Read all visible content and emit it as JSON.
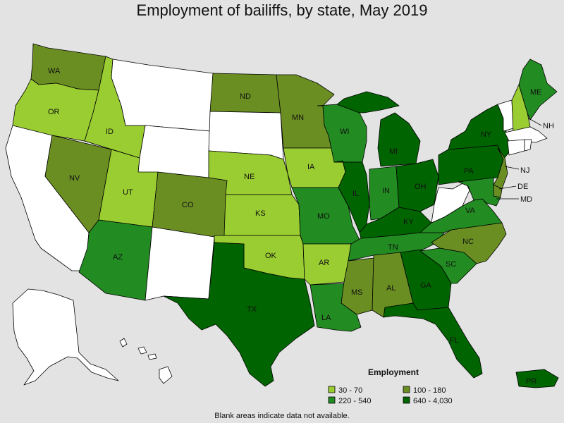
{
  "title": "Employment of bailiffs, by state, May 2019",
  "footnote": "Blank areas indicate data not available.",
  "legend": {
    "title": "Employment",
    "items": [
      {
        "label": "30 - 70",
        "color": "#9acd32"
      },
      {
        "label": "100 - 180",
        "color": "#6b8e23"
      },
      {
        "label": "220 - 540",
        "color": "#228b22"
      },
      {
        "label": "640 - 4,030",
        "color": "#006400"
      }
    ]
  },
  "colors": {
    "c1": "#9acd32",
    "c2": "#6b8e23",
    "c3": "#228b22",
    "c4": "#006400",
    "none": "#ffffff",
    "background": "#e3e3e3"
  },
  "states": {
    "WA": "c2",
    "OR": "c1",
    "ID": "c1",
    "NV": "c2",
    "UT": "c1",
    "AZ": "c3",
    "CO": "c2",
    "ND": "c2",
    "NE": "c1",
    "KS": "c1",
    "OK": "c1",
    "TX": "c4",
    "MN": "c2",
    "IA": "c1",
    "MO": "c3",
    "AR": "c1",
    "LA": "c3",
    "WI": "c3",
    "IL": "c4",
    "MI": "c4",
    "IN": "c3",
    "OH": "c4",
    "KY": "c4",
    "TN": "c3",
    "MS": "c2",
    "AL": "c2",
    "GA": "c4",
    "FL": "c4",
    "SC": "c3",
    "NC": "c2",
    "VA": "c3",
    "PA": "c4",
    "NY": "c4",
    "ME": "c3",
    "NH": "c1",
    "NJ": "c2",
    "DE": "c2",
    "MD": "c3",
    "PR": "c4",
    "CA": "none",
    "MT": "none",
    "WY": "none",
    "NM": "none",
    "SD": "none",
    "WV": "none",
    "VT": "none",
    "MA": "none",
    "CT": "none",
    "RI": "none",
    "AK": "none",
    "HI": "none"
  },
  "labels": {
    "WA": "WA",
    "OR": "OR",
    "ID": "ID",
    "NV": "NV",
    "UT": "UT",
    "AZ": "AZ",
    "CO": "CO",
    "ND": "ND",
    "NE": "NE",
    "KS": "KS",
    "OK": "OK",
    "TX": "TX",
    "MN": "MN",
    "IA": "IA",
    "MO": "MO",
    "AR": "AR",
    "LA": "LA",
    "WI": "WI",
    "IL": "IL",
    "MI": "MI",
    "IN": "IN",
    "OH": "OH",
    "KY": "KY",
    "TN": "TN",
    "MS": "MS",
    "AL": "AL",
    "GA": "GA",
    "FL": "FL",
    "SC": "SC",
    "NC": "NC",
    "VA": "VA",
    "PA": "PA",
    "NY": "NY",
    "ME": "ME",
    "NH": "NH",
    "NJ": "NJ",
    "DE": "DE",
    "MD": "MD",
    "PR": "PR"
  }
}
